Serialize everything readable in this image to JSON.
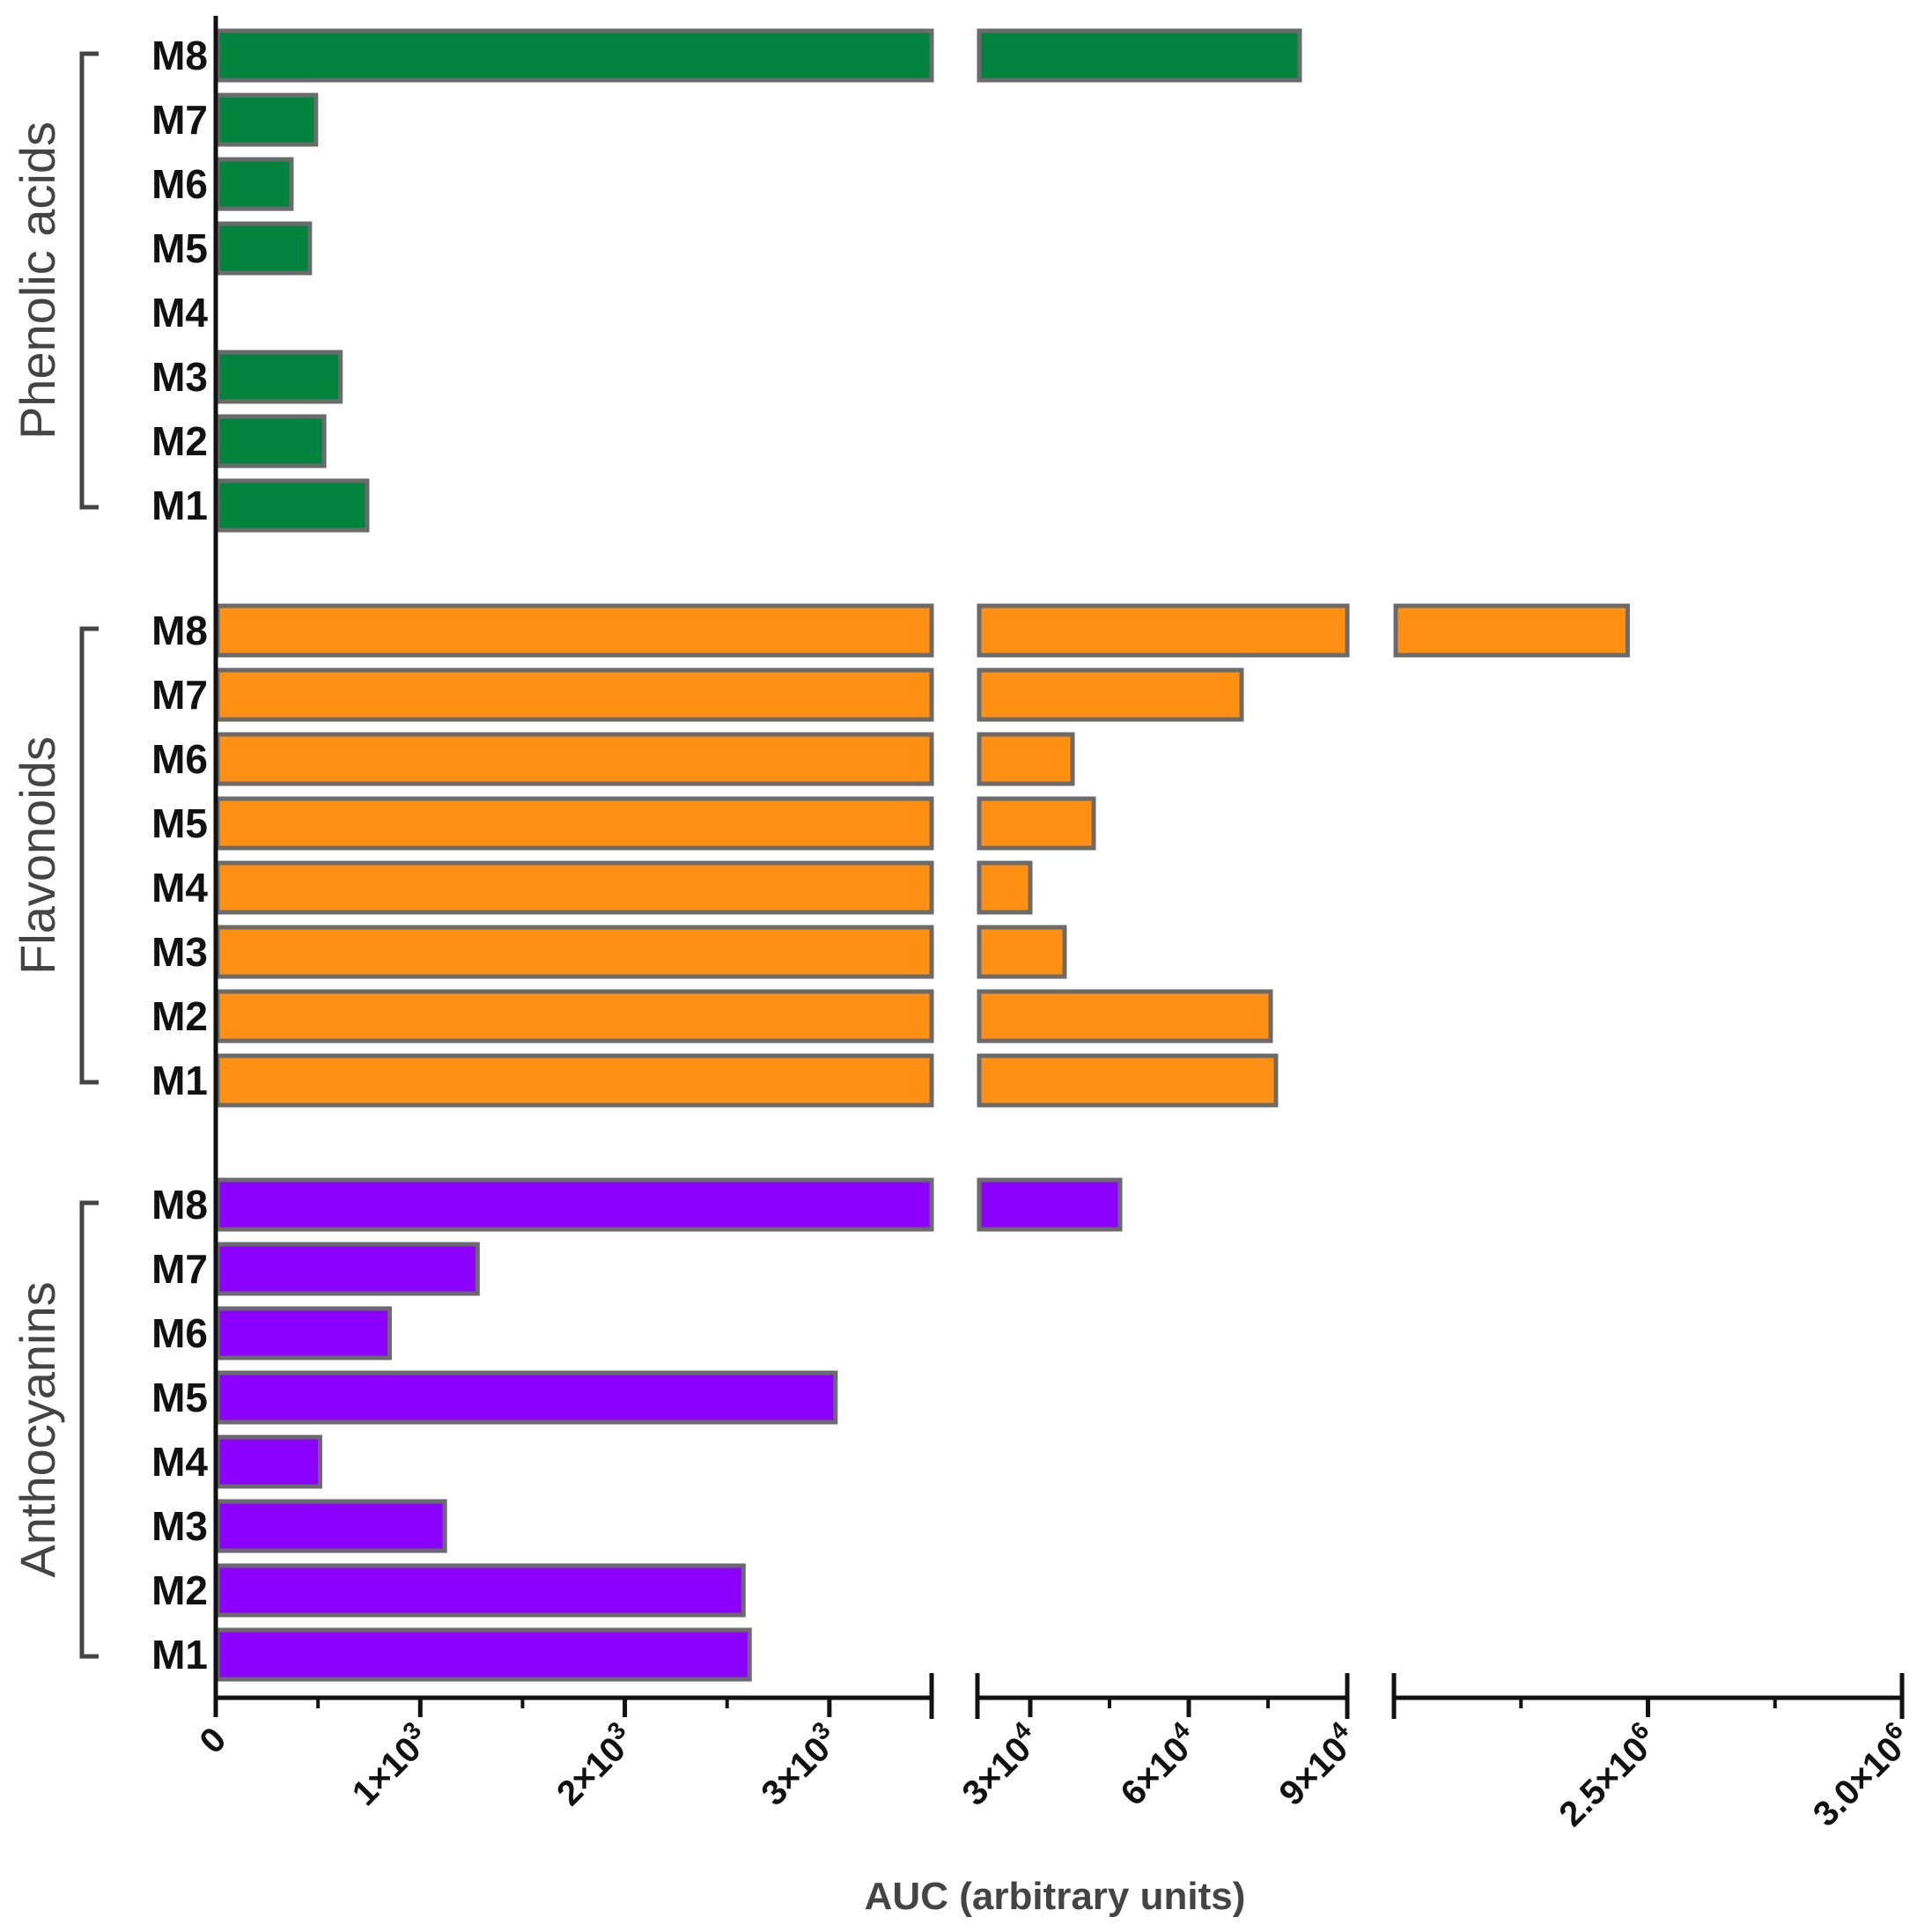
{
  "chart_data": {
    "type": "bar",
    "orientation": "horizontal",
    "xlabel": "AUC (arbitrary units)",
    "categories": [
      "M8",
      "M7",
      "M6",
      "M5",
      "M4",
      "M3",
      "M2",
      "M1"
    ],
    "axis_segments": [
      {
        "range": [
          0,
          3500
        ],
        "ticks": [
          0,
          1000,
          2000,
          3000
        ],
        "tick_labels": [
          "0",
          "1×10",
          "2×10",
          "3×10"
        ],
        "tick_exponents": [
          "",
          "3",
          "3",
          "3"
        ]
      },
      {
        "range": [
          20000,
          90000
        ],
        "ticks": [
          30000,
          60000,
          90000
        ],
        "tick_labels": [
          "3×10",
          "6×10",
          "9×10"
        ],
        "tick_exponents": [
          "4",
          "4",
          "4"
        ]
      },
      {
        "range": [
          2000000,
          3000000
        ],
        "ticks": [
          2500000,
          3000000
        ],
        "tick_labels": [
          "2.5×10",
          "3.0×10"
        ],
        "tick_exponents": [
          "6",
          "6"
        ]
      }
    ],
    "groups": [
      {
        "name": "Phenolic acids",
        "color": "#00843d",
        "values": [
          81000,
          490,
          370,
          460,
          0,
          610,
          530,
          740
        ]
      },
      {
        "name": "Flavonoids",
        "color": "#ff9014",
        "values": [
          2460000,
          70000,
          38000,
          42000,
          30000,
          36500,
          75500,
          76500
        ]
      },
      {
        "name": "Anthocyanins",
        "color": "#8c00ff",
        "values": [
          47000,
          1280,
          850,
          3030,
          510,
          1120,
          2580,
          2610
        ]
      }
    ]
  }
}
